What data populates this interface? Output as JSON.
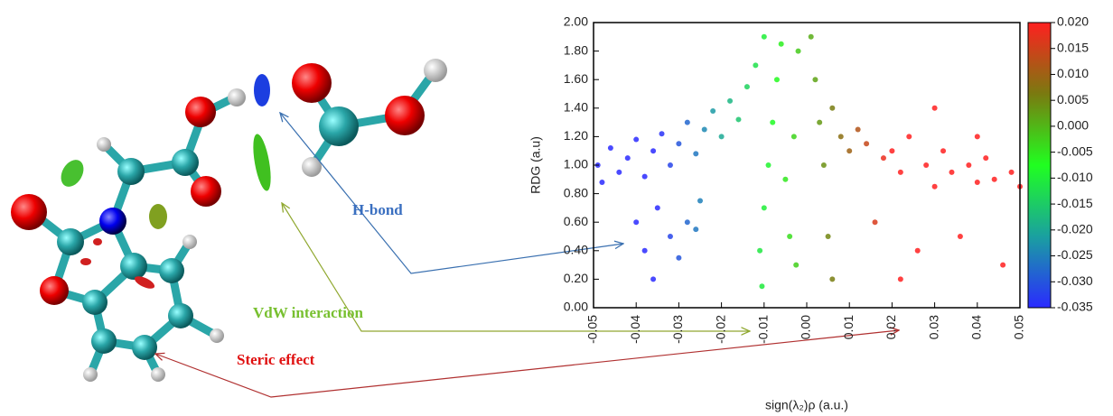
{
  "chart_data": {
    "type": "scatter",
    "xlabel": "sign(λ₂)ρ (a.u.)",
    "ylabel": "RDG (a.u)",
    "xlim": [
      -0.05,
      0.05
    ],
    "ylim": [
      0,
      2
    ],
    "xticks": [
      -0.05,
      -0.04,
      -0.03,
      -0.02,
      -0.01,
      {
        "value": 0,
        "label": "0.00"
      },
      0.01,
      0.02,
      0.03,
      0.04,
      0.05
    ],
    "yticks": [
      {
        "value": 0,
        "label": "0.00"
      },
      {
        "value": 0.2,
        "label": "0.20"
      },
      {
        "value": 0.4,
        "label": "0.40"
      },
      {
        "value": 0.6,
        "label": "0.60"
      },
      {
        "value": 0.8,
        "label": "0.80"
      },
      {
        "value": 1,
        "label": "1.00"
      },
      {
        "value": 1.2,
        "label": "1.20"
      },
      {
        "value": 1.4,
        "label": "1.40"
      },
      {
        "value": 1.6,
        "label": "1.60"
      },
      {
        "value": 1.8,
        "label": "1.80"
      },
      {
        "value": 2,
        "label": "2.00"
      }
    ],
    "colorbar": {
      "lim": [
        -0.035,
        0.02
      ],
      "colors": [
        "#2a2aff",
        "#1aa0a0",
        "#20ff20",
        "#7a7a10",
        "#ff2020"
      ],
      "ticks": [
        {
          "value": 0.02,
          "label": "0.020"
        },
        {
          "value": 0.015,
          "label": "0.015"
        },
        {
          "value": 0.01,
          "label": "0.010"
        },
        {
          "value": 0.005,
          "label": "0.005"
        },
        {
          "value": 0,
          "label": "0.000"
        },
        {
          "value": -0.005,
          "label": "-0.005"
        },
        {
          "value": -0.01,
          "label": "-0.010"
        },
        {
          "value": -0.015,
          "label": "-0.015"
        },
        {
          "value": -0.02,
          "label": "-0.020"
        },
        {
          "value": -0.025,
          "label": "-0.025"
        },
        {
          "value": -0.03,
          "label": "-0.030"
        },
        {
          "value": -0.035,
          "label": "-0.035"
        }
      ]
    },
    "x": [
      -0.049,
      -0.048,
      -0.046,
      -0.044,
      -0.042,
      -0.04,
      -0.038,
      -0.036,
      -0.034,
      -0.032,
      -0.03,
      -0.028,
      -0.026,
      -0.024,
      -0.022,
      -0.02,
      -0.018,
      -0.016,
      -0.014,
      -0.012,
      -0.01,
      -0.04,
      -0.038,
      -0.036,
      -0.035,
      -0.032,
      -0.03,
      -0.028,
      -0.026,
      -0.025,
      -0.011,
      -0.0105,
      -0.01,
      -0.009,
      -0.008,
      -0.007,
      -0.006,
      -0.005,
      -0.004,
      -0.003,
      -0.002,
      -0.0025,
      0.001,
      0.002,
      0.003,
      0.004,
      0.005,
      0.006,
      0.006,
      0.008,
      0.01,
      0.012,
      0.014,
      0.016,
      0.018,
      0.02,
      0.022,
      0.024,
      0.026,
      0.028,
      0.03,
      0.032,
      0.034,
      0.036,
      0.038,
      0.04,
      0.042,
      0.044,
      0.046,
      0.048,
      0.05,
      0.022,
      0.03,
      0.04
    ],
    "y": [
      1.0,
      0.88,
      1.12,
      0.95,
      1.05,
      1.18,
      0.92,
      1.1,
      1.22,
      1.0,
      1.15,
      1.3,
      1.08,
      1.25,
      1.38,
      1.2,
      1.45,
      1.32,
      1.55,
      1.7,
      1.9,
      0.6,
      0.4,
      0.2,
      0.7,
      0.5,
      0.35,
      0.6,
      0.55,
      0.75,
      0.4,
      0.15,
      0.7,
      1.0,
      1.3,
      1.6,
      1.85,
      0.9,
      0.5,
      1.2,
      1.8,
      0.3,
      1.9,
      1.6,
      1.3,
      1.0,
      0.5,
      0.2,
      1.4,
      1.2,
      1.1,
      1.25,
      1.15,
      0.6,
      1.05,
      1.1,
      0.95,
      1.2,
      0.4,
      1.0,
      0.85,
      1.1,
      0.95,
      0.5,
      1.0,
      0.88,
      1.05,
      0.9,
      0.3,
      0.95,
      0.85,
      0.2,
      1.4,
      1.2
    ]
  },
  "annotations": [
    "H-bond",
    "VdW interaction",
    "Steric effect"
  ]
}
